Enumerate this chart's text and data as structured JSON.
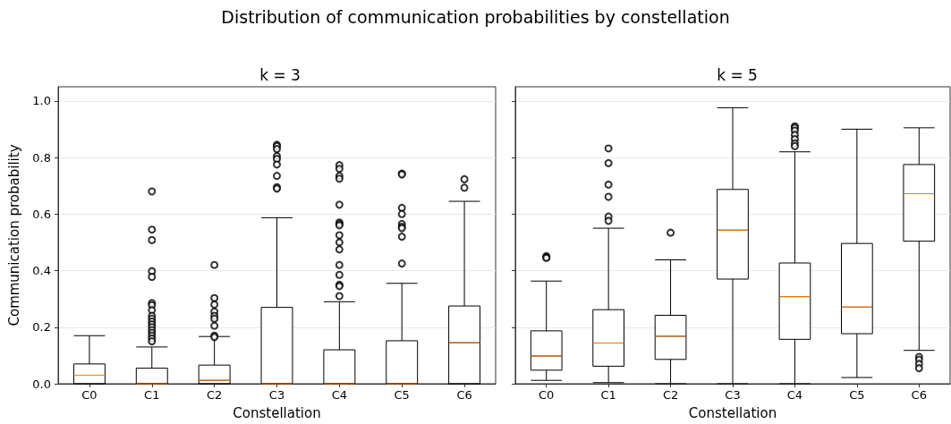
{
  "chart_data": [
    {
      "type": "box",
      "title": "k = 3",
      "annotations": [
        "Distribution of communication probabilities by constellation"
      ],
      "xlabel": "Constellation",
      "ylabel": "Communication probability",
      "categories": [
        "C0",
        "C1",
        "C2",
        "C3",
        "C4",
        "C5",
        "C6"
      ],
      "ylim": [
        0,
        1.05
      ],
      "yticks": [
        {
          "value": 0,
          "label": "0.0"
        },
        {
          "value": 0.2,
          "label": "0.2"
        },
        {
          "value": 0.4,
          "label": "0.4"
        },
        {
          "value": 0.6,
          "label": "0.6"
        },
        {
          "value": 0.8,
          "label": "0.8"
        },
        {
          "value": 1,
          "label": "1.0"
        }
      ],
      "grid": "y",
      "boxes": [
        {
          "low": 0,
          "q1": 0,
          "median": 0.03,
          "q3": 0.07,
          "high": 0.17
        },
        {
          "low": 0,
          "q1": 0,
          "median": 0,
          "q3": 0.055,
          "high": 0.13,
          "outliers": [
            0.68,
            0.545,
            0.508,
            0.398,
            0.378,
            0.285,
            0.278,
            0.26,
            0.24,
            0.23,
            0.22,
            0.21,
            0.2,
            0.19,
            0.18,
            0.17,
            0.16,
            0.15
          ]
        },
        {
          "low": 0,
          "q1": 0,
          "median": 0.012,
          "q3": 0.066,
          "high": 0.167,
          "outliers": [
            0.42,
            0.303,
            0.28,
            0.255,
            0.24,
            0.23,
            0.205,
            0.17,
            0.165
          ]
        },
        {
          "low": 0,
          "q1": 0,
          "median": 0,
          "q3": 0.27,
          "high": 0.587,
          "outliers": [
            0.845,
            0.84,
            0.83,
            0.805,
            0.795,
            0.775,
            0.735,
            0.695,
            0.69
          ]
        },
        {
          "low": 0,
          "q1": 0,
          "median": 0,
          "q3": 0.12,
          "high": 0.29,
          "outliers": [
            0.773,
            0.76,
            0.735,
            0.725,
            0.633,
            0.57,
            0.565,
            0.56,
            0.525,
            0.5,
            0.475,
            0.42,
            0.385,
            0.35,
            0.345,
            0.31
          ]
        },
        {
          "low": 0,
          "q1": 0,
          "median": 0,
          "q3": 0.152,
          "high": 0.355,
          "outliers": [
            0.743,
            0.74,
            0.622,
            0.6,
            0.565,
            0.555,
            0.55,
            0.52,
            0.425
          ]
        },
        {
          "low": 0,
          "q1": 0,
          "median": 0.145,
          "q3": 0.275,
          "high": 0.645,
          "outliers": [
            0.723,
            0.693
          ]
        }
      ]
    },
    {
      "type": "box",
      "title": "k = 5",
      "xlabel": "Constellation",
      "categories": [
        "C0",
        "C1",
        "C2",
        "C3",
        "C4",
        "C5",
        "C6"
      ],
      "ylim": [
        0,
        1.05
      ],
      "yticks": [
        {
          "value": 0,
          "label": null
        },
        {
          "value": 0.2,
          "label": null
        },
        {
          "value": 0.4,
          "label": null
        },
        {
          "value": 0.6,
          "label": null
        },
        {
          "value": 0.8,
          "label": null
        },
        {
          "value": 1,
          "label": null
        }
      ],
      "tick_labels": "x",
      "grid": "y",
      "boxes": [
        {
          "low": 0.012,
          "q1": 0.048,
          "median": 0.098,
          "q3": 0.187,
          "high": 0.363,
          "outliers": [
            0.451,
            0.447,
            0.445
          ]
        },
        {
          "low": 0.004,
          "q1": 0.062,
          "median": 0.144,
          "q3": 0.262,
          "high": 0.55,
          "outliers": [
            0.832,
            0.78,
            0.704,
            0.661,
            0.591,
            0.576
          ]
        },
        {
          "low": 0,
          "q1": 0.086,
          "median": 0.168,
          "q3": 0.242,
          "high": 0.438,
          "outliers": [
            0.534
          ]
        },
        {
          "low": 0,
          "q1": 0.37,
          "median": 0.543,
          "q3": 0.687,
          "high": 0.976
        },
        {
          "low": 0,
          "q1": 0.157,
          "median": 0.308,
          "q3": 0.427,
          "high": 0.82,
          "outliers": [
            0.91,
            0.905,
            0.895,
            0.88,
            0.865,
            0.85,
            0.84
          ]
        },
        {
          "low": 0.022,
          "q1": 0.177,
          "median": 0.271,
          "q3": 0.496,
          "high": 0.9
        },
        {
          "low": 0.118,
          "q1": 0.504,
          "median": 0.672,
          "q3": 0.775,
          "high": 0.905,
          "outliers": [
            0.095,
            0.085,
            0.07,
            0.055
          ]
        }
      ]
    }
  ]
}
